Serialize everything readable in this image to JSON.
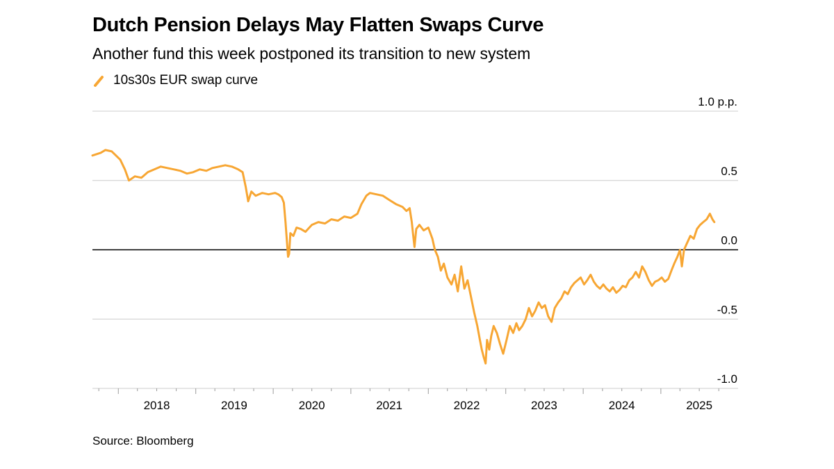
{
  "title": "Dutch Pension Delays May Flatten Swaps Curve",
  "subtitle": "Another fund this week postponed its transition to new system",
  "source": "Source: Bloomberg",
  "colors": {
    "series": "#f7a633",
    "grid": "#cccccc",
    "zero_line": "#000000",
    "axis": "#9a9a9a"
  },
  "chart_data": {
    "type": "line",
    "title": "Dutch Pension Delays May Flatten Swaps Curve",
    "subtitle": "Another fund this week postponed its transition to new system",
    "xlabel": "",
    "ylabel": "",
    "ylim": [
      -1.0,
      1.0
    ],
    "xlim": [
      "2017-09-01",
      "2025-12-31"
    ],
    "y_unit": "p.p.",
    "yticks": [
      1.0,
      0.5,
      0.0,
      -0.5,
      -1.0
    ],
    "ytick_labels": [
      "1.0 p.p.",
      "0.5",
      "0.0",
      "-0.5",
      "-1.0"
    ],
    "xtick_labels": [
      "2018",
      "2019",
      "2020",
      "2021",
      "2022",
      "2023",
      "2024",
      "2025"
    ],
    "grid": true,
    "legend_placement": "top-left",
    "series": [
      {
        "name": "10s30s EUR swap curve",
        "points": [
          [
            "2017-09-01",
            0.68
          ],
          [
            "2017-10-10",
            0.7
          ],
          [
            "2017-11-01",
            0.72
          ],
          [
            "2017-12-01",
            0.71
          ],
          [
            "2018-01-10",
            0.65
          ],
          [
            "2018-02-01",
            0.58
          ],
          [
            "2018-02-20",
            0.5
          ],
          [
            "2018-03-20",
            0.53
          ],
          [
            "2018-04-20",
            0.52
          ],
          [
            "2018-05-20",
            0.56
          ],
          [
            "2018-06-20",
            0.58
          ],
          [
            "2018-07-20",
            0.6
          ],
          [
            "2018-08-20",
            0.59
          ],
          [
            "2018-09-20",
            0.58
          ],
          [
            "2018-10-20",
            0.57
          ],
          [
            "2018-11-20",
            0.55
          ],
          [
            "2018-12-20",
            0.56
          ],
          [
            "2019-01-20",
            0.58
          ],
          [
            "2019-02-20",
            0.57
          ],
          [
            "2019-03-20",
            0.59
          ],
          [
            "2019-04-20",
            0.6
          ],
          [
            "2019-05-20",
            0.61
          ],
          [
            "2019-06-20",
            0.6
          ],
          [
            "2019-07-20",
            0.58
          ],
          [
            "2019-08-10",
            0.56
          ],
          [
            "2019-08-25",
            0.45
          ],
          [
            "2019-09-05",
            0.35
          ],
          [
            "2019-09-20",
            0.42
          ],
          [
            "2019-10-10",
            0.39
          ],
          [
            "2019-11-10",
            0.41
          ],
          [
            "2019-12-10",
            0.4
          ],
          [
            "2020-01-10",
            0.41
          ],
          [
            "2020-01-25",
            0.4
          ],
          [
            "2020-02-10",
            0.38
          ],
          [
            "2020-02-20",
            0.34
          ],
          [
            "2020-02-28",
            0.2
          ],
          [
            "2020-03-06",
            0.05
          ],
          [
            "2020-03-11",
            -0.05
          ],
          [
            "2020-03-16",
            -0.03
          ],
          [
            "2020-03-22",
            0.12
          ],
          [
            "2020-04-05",
            0.1
          ],
          [
            "2020-04-20",
            0.16
          ],
          [
            "2020-05-10",
            0.15
          ],
          [
            "2020-06-01",
            0.13
          ],
          [
            "2020-07-01",
            0.18
          ],
          [
            "2020-08-01",
            0.2
          ],
          [
            "2020-09-01",
            0.19
          ],
          [
            "2020-10-01",
            0.22
          ],
          [
            "2020-11-01",
            0.21
          ],
          [
            "2020-12-01",
            0.24
          ],
          [
            "2021-01-01",
            0.23
          ],
          [
            "2021-02-01",
            0.26
          ],
          [
            "2021-02-20",
            0.33
          ],
          [
            "2021-03-15",
            0.39
          ],
          [
            "2021-04-01",
            0.41
          ],
          [
            "2021-05-01",
            0.4
          ],
          [
            "2021-06-01",
            0.39
          ],
          [
            "2021-07-01",
            0.36
          ],
          [
            "2021-08-01",
            0.33
          ],
          [
            "2021-09-01",
            0.31
          ],
          [
            "2021-09-20",
            0.28
          ],
          [
            "2021-10-05",
            0.3
          ],
          [
            "2021-10-15",
            0.2
          ],
          [
            "2021-10-22",
            0.1
          ],
          [
            "2021-10-28",
            0.02
          ],
          [
            "2021-11-05",
            0.15
          ],
          [
            "2021-11-20",
            0.18
          ],
          [
            "2021-12-10",
            0.14
          ],
          [
            "2022-01-01",
            0.16
          ],
          [
            "2022-01-20",
            0.08
          ],
          [
            "2022-02-01",
            0.0
          ],
          [
            "2022-02-15",
            -0.05
          ],
          [
            "2022-03-01",
            -0.15
          ],
          [
            "2022-03-15",
            -0.1
          ],
          [
            "2022-04-01",
            -0.2
          ],
          [
            "2022-04-20",
            -0.25
          ],
          [
            "2022-05-05",
            -0.18
          ],
          [
            "2022-05-20",
            -0.3
          ],
          [
            "2022-06-05",
            -0.12
          ],
          [
            "2022-06-20",
            -0.28
          ],
          [
            "2022-07-05",
            -0.22
          ],
          [
            "2022-07-20",
            -0.33
          ],
          [
            "2022-08-05",
            -0.45
          ],
          [
            "2022-08-20",
            -0.55
          ],
          [
            "2022-09-01",
            -0.65
          ],
          [
            "2022-09-10",
            -0.72
          ],
          [
            "2022-09-20",
            -0.78
          ],
          [
            "2022-09-28",
            -0.82
          ],
          [
            "2022-10-05",
            -0.65
          ],
          [
            "2022-10-15",
            -0.72
          ],
          [
            "2022-10-25",
            -0.62
          ],
          [
            "2022-11-05",
            -0.55
          ],
          [
            "2022-11-20",
            -0.6
          ],
          [
            "2022-12-05",
            -0.68
          ],
          [
            "2022-12-20",
            -0.75
          ],
          [
            "2023-01-05",
            -0.65
          ],
          [
            "2023-01-20",
            -0.55
          ],
          [
            "2023-02-05",
            -0.6
          ],
          [
            "2023-02-20",
            -0.53
          ],
          [
            "2023-03-05",
            -0.58
          ],
          [
            "2023-03-20",
            -0.55
          ],
          [
            "2023-04-05",
            -0.5
          ],
          [
            "2023-04-20",
            -0.42
          ],
          [
            "2023-05-05",
            -0.48
          ],
          [
            "2023-05-20",
            -0.44
          ],
          [
            "2023-06-05",
            -0.38
          ],
          [
            "2023-06-20",
            -0.42
          ],
          [
            "2023-07-05",
            -0.4
          ],
          [
            "2023-07-20",
            -0.48
          ],
          [
            "2023-08-05",
            -0.52
          ],
          [
            "2023-08-20",
            -0.42
          ],
          [
            "2023-09-05",
            -0.38
          ],
          [
            "2023-09-20",
            -0.35
          ],
          [
            "2023-10-05",
            -0.3
          ],
          [
            "2023-10-20",
            -0.32
          ],
          [
            "2023-11-05",
            -0.27
          ],
          [
            "2023-11-20",
            -0.24
          ],
          [
            "2023-12-05",
            -0.22
          ],
          [
            "2023-12-20",
            -0.2
          ],
          [
            "2024-01-05",
            -0.25
          ],
          [
            "2024-01-20",
            -0.22
          ],
          [
            "2024-02-05",
            -0.18
          ],
          [
            "2024-02-20",
            -0.23
          ],
          [
            "2024-03-05",
            -0.26
          ],
          [
            "2024-03-20",
            -0.28
          ],
          [
            "2024-04-05",
            -0.25
          ],
          [
            "2024-04-20",
            -0.28
          ],
          [
            "2024-05-05",
            -0.3
          ],
          [
            "2024-05-20",
            -0.27
          ],
          [
            "2024-06-05",
            -0.31
          ],
          [
            "2024-06-20",
            -0.29
          ],
          [
            "2024-07-05",
            -0.26
          ],
          [
            "2024-07-20",
            -0.27
          ],
          [
            "2024-08-05",
            -0.22
          ],
          [
            "2024-08-20",
            -0.2
          ],
          [
            "2024-09-05",
            -0.16
          ],
          [
            "2024-09-20",
            -0.2
          ],
          [
            "2024-10-05",
            -0.12
          ],
          [
            "2024-10-20",
            -0.16
          ],
          [
            "2024-11-05",
            -0.22
          ],
          [
            "2024-11-20",
            -0.26
          ],
          [
            "2024-12-05",
            -0.23
          ],
          [
            "2024-12-20",
            -0.22
          ],
          [
            "2025-01-05",
            -0.2
          ],
          [
            "2025-01-20",
            -0.23
          ],
          [
            "2025-02-05",
            -0.21
          ],
          [
            "2025-02-20",
            -0.15
          ],
          [
            "2025-03-05",
            -0.1
          ],
          [
            "2025-03-20",
            -0.05
          ],
          [
            "2025-04-01",
            0.0
          ],
          [
            "2025-04-10",
            -0.12
          ],
          [
            "2025-04-20",
            0.0
          ],
          [
            "2025-05-05",
            0.05
          ],
          [
            "2025-05-20",
            0.1
          ],
          [
            "2025-06-05",
            0.08
          ],
          [
            "2025-06-20",
            0.15
          ],
          [
            "2025-07-05",
            0.18
          ],
          [
            "2025-07-20",
            0.2
          ],
          [
            "2025-08-05",
            0.22
          ],
          [
            "2025-08-20",
            0.26
          ],
          [
            "2025-09-01",
            0.22
          ],
          [
            "2025-09-10",
            0.2
          ]
        ]
      }
    ]
  }
}
